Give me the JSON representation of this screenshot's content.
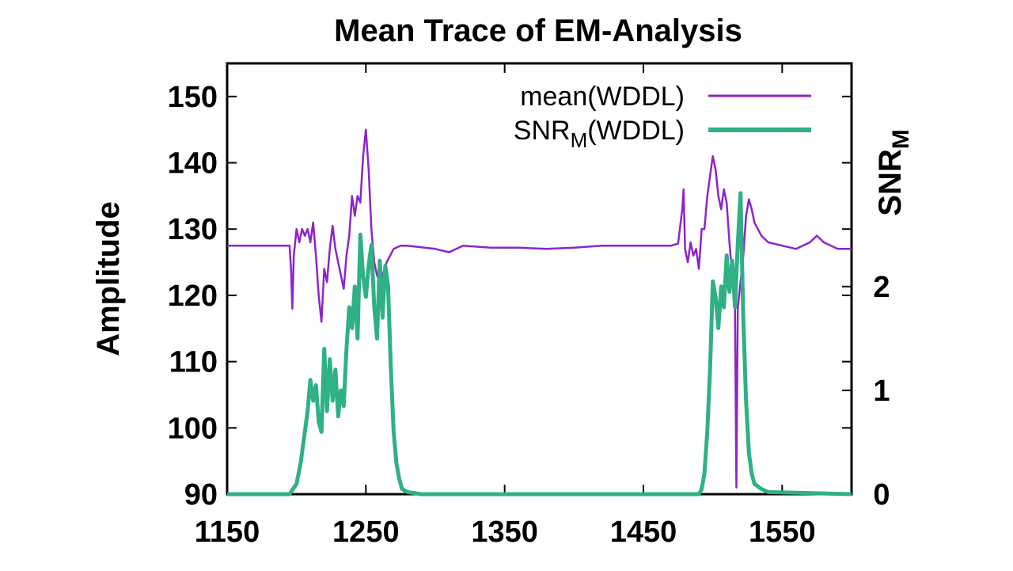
{
  "chart_data": {
    "type": "line",
    "title": "Mean Trace of EM-Analysis",
    "xlabel": "",
    "ylabel": "Amplitude",
    "y2label": {
      "main": "SNR",
      "sub": "M"
    },
    "xlim": [
      1150,
      1600
    ],
    "ylim": [
      90,
      155
    ],
    "y2lim": [
      0,
      4.15
    ],
    "xticks": [
      1150,
      1250,
      1350,
      1450,
      1550
    ],
    "yticks": [
      90,
      100,
      110,
      120,
      130,
      140,
      150
    ],
    "y2ticks": [
      0,
      1,
      2
    ],
    "grid": false,
    "legend_position": "top-right",
    "series": [
      {
        "name": "mean(WDDL)",
        "axis": "y",
        "color": "#8e24c9",
        "x": [
          1150,
          1195,
          1196,
          1197,
          1198,
          1200,
          1202,
          1204,
          1206,
          1208,
          1210,
          1212,
          1214,
          1216,
          1218,
          1220,
          1222,
          1224,
          1226,
          1228,
          1230,
          1232,
          1234,
          1236,
          1238,
          1240,
          1242,
          1244,
          1246,
          1248,
          1250,
          1252,
          1254,
          1256,
          1258,
          1260,
          1262,
          1265,
          1270,
          1275,
          1280,
          1300,
          1310,
          1320,
          1340,
          1360,
          1380,
          1400,
          1420,
          1440,
          1460,
          1470,
          1475,
          1478,
          1479,
          1480,
          1482,
          1484,
          1486,
          1488,
          1490,
          1492,
          1494,
          1496,
          1498,
          1500,
          1502,
          1504,
          1506,
          1508,
          1510,
          1512,
          1514,
          1516,
          1517,
          1518,
          1520,
          1522,
          1524,
          1526,
          1528,
          1530,
          1535,
          1540,
          1550,
          1560,
          1570,
          1575,
          1580,
          1590,
          1600
        ],
        "y": [
          127.5,
          127.5,
          124,
          118,
          126,
          130,
          128,
          130,
          129,
          130,
          128,
          131,
          126,
          120,
          116,
          124,
          122,
          127,
          130.5,
          127,
          125,
          123,
          121,
          126,
          129,
          135,
          132,
          135,
          134,
          141,
          145,
          139,
          130,
          125,
          123,
          122,
          123,
          125,
          127,
          127.5,
          127.5,
          127,
          126.5,
          127.5,
          127.2,
          127.2,
          127,
          127.2,
          127.5,
          127.5,
          127.5,
          127.5,
          127.8,
          133,
          136,
          127,
          125,
          128,
          126,
          127,
          124,
          130,
          130,
          135,
          138,
          141,
          139,
          135,
          133,
          136,
          134,
          128,
          123,
          118,
          91,
          118,
          122,
          126,
          132,
          134.5,
          133,
          131,
          129,
          128,
          127.5,
          127,
          128,
          129,
          128,
          127,
          127
        ]
      },
      {
        "name": "SNR_M(WDDL)",
        "axis": "y2",
        "color": "#2fb185",
        "x": [
          1150,
          1195,
          1200,
          1203,
          1206,
          1208,
          1210,
          1212,
          1214,
          1216,
          1218,
          1220,
          1222,
          1224,
          1226,
          1228,
          1230,
          1232,
          1234,
          1236,
          1238,
          1240,
          1242,
          1244,
          1246,
          1248,
          1250,
          1252,
          1254,
          1256,
          1258,
          1260,
          1262,
          1264,
          1266,
          1268,
          1270,
          1272,
          1274,
          1276,
          1280,
          1290,
          1300,
          1400,
          1490,
          1492,
          1494,
          1496,
          1498,
          1500,
          1502,
          1504,
          1506,
          1508,
          1510,
          1512,
          1514,
          1516,
          1518,
          1520,
          1522,
          1524,
          1526,
          1528,
          1530,
          1535,
          1540,
          1600
        ],
        "y": [
          0,
          0,
          0.1,
          0.3,
          0.6,
          0.8,
          1.1,
          0.9,
          1.05,
          0.7,
          0.6,
          1.4,
          0.8,
          1.3,
          0.9,
          1.2,
          0.75,
          1.0,
          0.85,
          1.4,
          1.8,
          1.6,
          2.0,
          1.5,
          2.5,
          2.1,
          1.9,
          2.2,
          2.4,
          1.8,
          1.5,
          2.25,
          1.7,
          2.2,
          2.0,
          1.2,
          0.6,
          0.3,
          0.15,
          0.05,
          0.02,
          0,
          0,
          0,
          0,
          0.05,
          0.2,
          0.6,
          1.2,
          2.05,
          1.9,
          1.6,
          2.0,
          1.8,
          2.3,
          1.95,
          2.25,
          1.8,
          2.4,
          2.9,
          1.7,
          0.9,
          0.4,
          0.2,
          0.1,
          0.05,
          0.02,
          0
        ]
      }
    ]
  }
}
